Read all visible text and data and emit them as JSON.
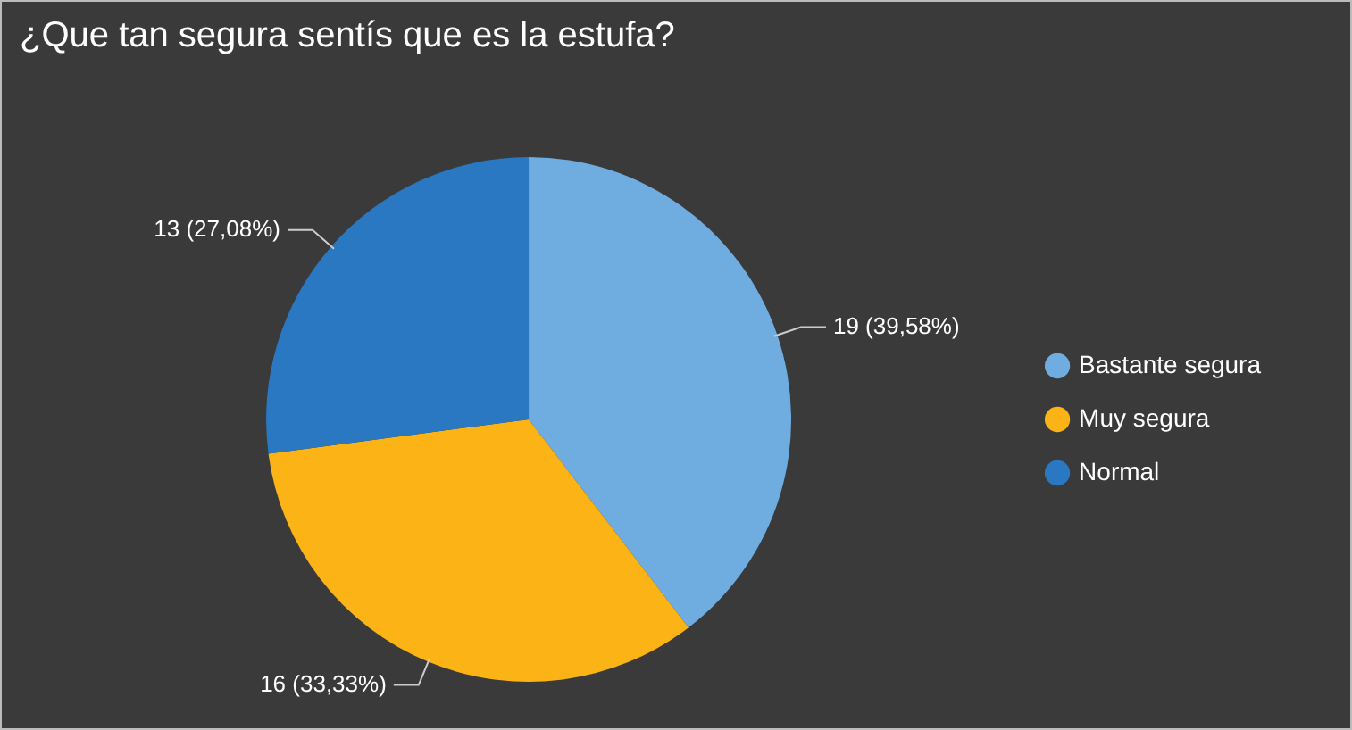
{
  "chart_data": {
    "type": "pie",
    "title": "¿Que tan segura sentís que es la estufa?",
    "categories": [
      "Bastante segura",
      "Muy segura",
      "Normal"
    ],
    "values": [
      19,
      16,
      13
    ],
    "colors": [
      "#6fade0",
      "#fbb315",
      "#2b78c2"
    ],
    "value_labels": [
      "19 (39,58%)",
      "16 (33,33%)",
      "13 (27,08%)"
    ],
    "legend": "right"
  }
}
